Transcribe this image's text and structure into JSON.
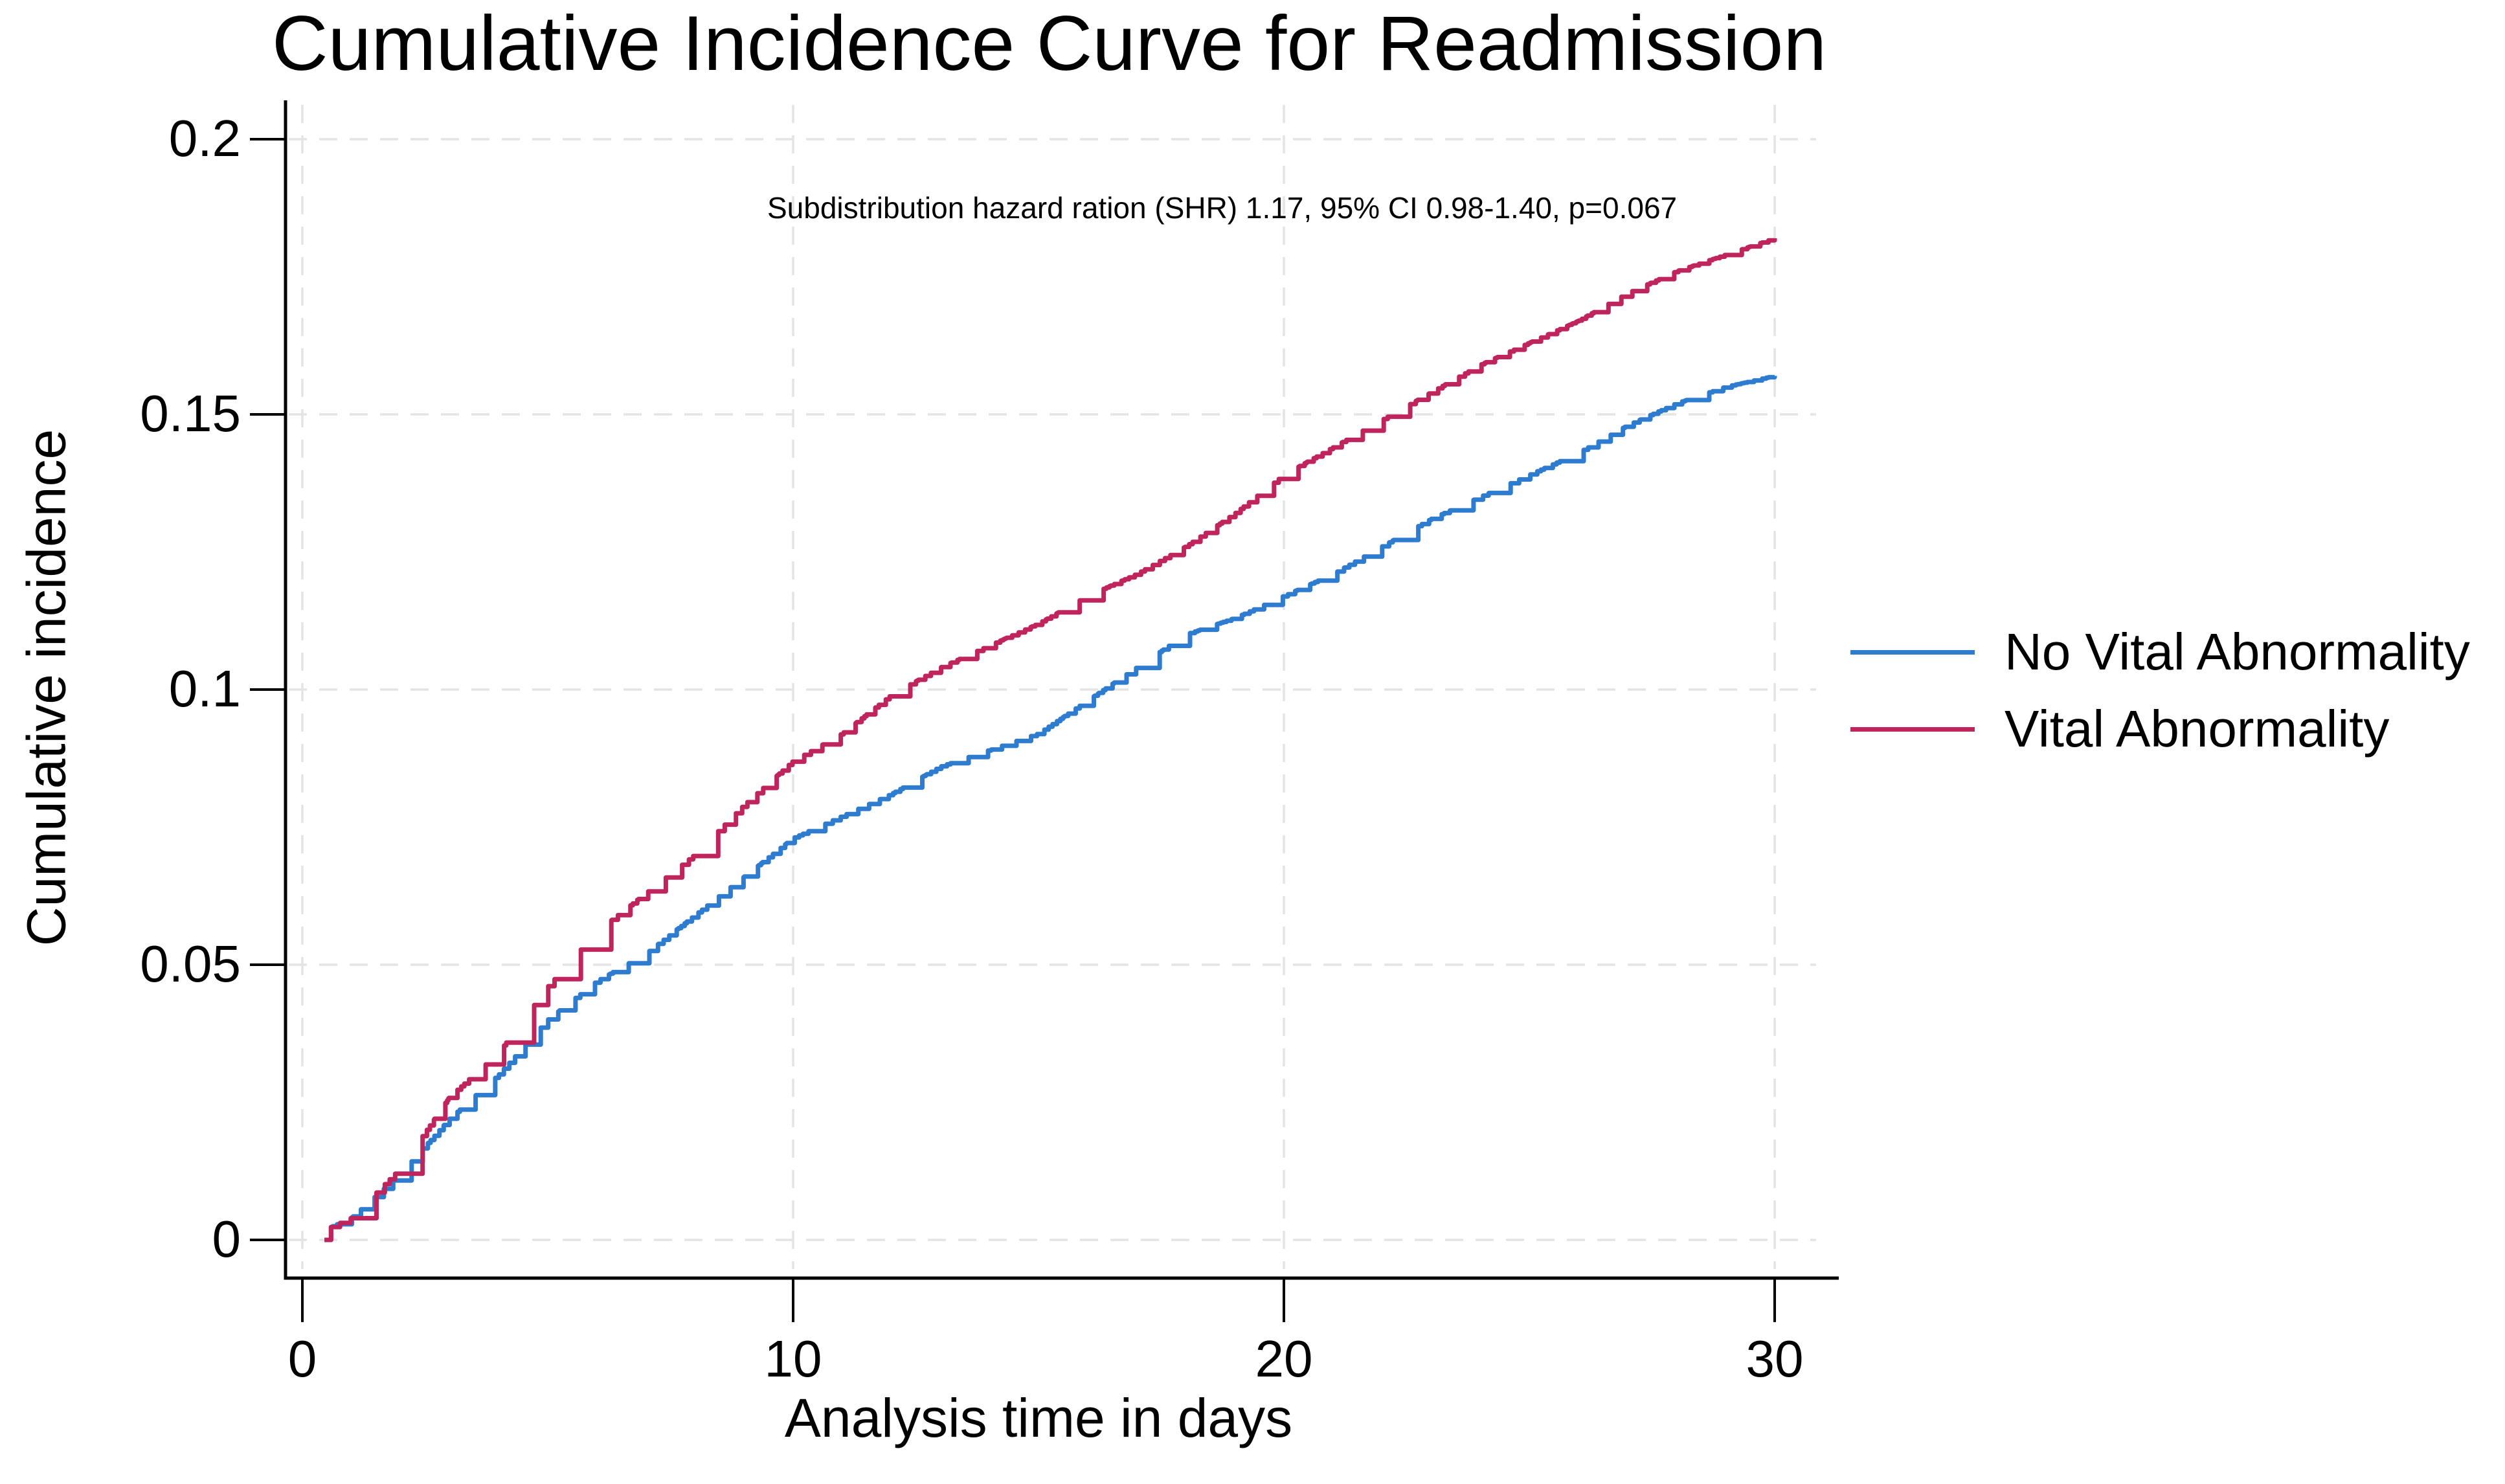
{
  "figure": {
    "title": "Cumulative Incidence Curve for Readmission",
    "background_color": "#ffffff"
  },
  "chart_data": {
    "type": "line",
    "subtype": "cumulative-incidence-step-function",
    "title": "Cumulative Incidence Curve for Readmission",
    "annotation": "Subdistribution hazard ration (SHR) 1.17, 95% CI 0.98-1.40, p=0.067",
    "xlabel": "Analysis time in days",
    "ylabel": "Cumulative incidence",
    "xlim": [
      0,
      30
    ],
    "ylim": [
      0,
      0.2
    ],
    "xticks": [
      0,
      10,
      20,
      30
    ],
    "xtick_labels": [
      "0",
      "10",
      "20",
      "30"
    ],
    "yticks": [
      0,
      0.05,
      0.1,
      0.15,
      0.2
    ],
    "ytick_labels": [
      "0",
      "0.05",
      "0.1",
      "0.15",
      "0.2"
    ],
    "grid": "dashed-light-gray",
    "grid_color": "#e4e4e4",
    "axis_color": "#000000",
    "legend_position": "right-middle",
    "start_day": 0.45,
    "x_days": [
      0,
      1,
      2,
      3,
      4,
      5,
      6,
      7,
      8,
      9,
      10,
      11,
      12,
      13,
      14,
      15,
      16,
      17,
      18,
      19,
      20,
      21,
      22,
      23,
      24,
      25,
      26,
      27,
      28,
      29,
      30
    ],
    "series": [
      {
        "name": "No Vital Abnormality",
        "color": "#2e7cd0",
        "values": [
          0,
          0.004,
          0.012,
          0.022,
          0.03,
          0.04,
          0.047,
          0.052,
          0.059,
          0.066,
          0.073,
          0.077,
          0.081,
          0.086,
          0.089,
          0.092,
          0.098,
          0.104,
          0.11,
          0.113,
          0.117,
          0.121,
          0.126,
          0.131,
          0.135,
          0.139,
          0.143,
          0.148,
          0.152,
          0.155,
          0.157
        ]
      },
      {
        "name": "Vital Abnormality",
        "color": "#c0245c",
        "values": [
          0,
          0.004,
          0.013,
          0.026,
          0.034,
          0.046,
          0.056,
          0.063,
          0.07,
          0.079,
          0.087,
          0.092,
          0.099,
          0.104,
          0.108,
          0.112,
          0.117,
          0.121,
          0.126,
          0.132,
          0.139,
          0.144,
          0.149,
          0.154,
          0.159,
          0.163,
          0.167,
          0.172,
          0.176,
          0.179,
          0.182
        ]
      }
    ]
  },
  "legend": {
    "items": [
      {
        "label": "No Vital Abnormality",
        "color": "#2e7cd0"
      },
      {
        "label": "Vital Abnormality",
        "color": "#c0245c"
      }
    ]
  }
}
